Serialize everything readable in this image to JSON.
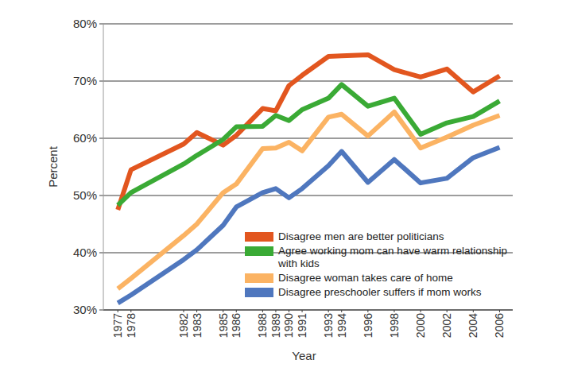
{
  "chart_data": {
    "type": "line",
    "x_label": "Year",
    "y_label": "Percent",
    "x": [
      1977,
      1978,
      1982,
      1983,
      1985,
      1986,
      1988,
      1989,
      1990,
      1991,
      1993,
      1994,
      1996,
      1998,
      2000,
      2002,
      2004,
      2006
    ],
    "xlim": [
      1975.9,
      2007
    ],
    "xticks": [
      1977,
      1978,
      1982,
      1983,
      1985,
      1986,
      1988,
      1989,
      1990,
      1991,
      1993,
      1994,
      1996,
      1998,
      2000,
      2002,
      2004,
      2006
    ],
    "ylim": [
      30,
      80
    ],
    "yticks": [
      {
        "value": 30,
        "label": "30%"
      },
      {
        "value": 40,
        "label": "40%"
      },
      {
        "value": 50,
        "label": "50%"
      },
      {
        "value": 60,
        "label": "60%"
      },
      {
        "value": 70,
        "label": "70%"
      },
      {
        "value": 80,
        "label": "80%"
      }
    ],
    "grid": true,
    "legend": "bottom-right",
    "series": [
      {
        "name": "Disagree men are better politicians",
        "color": "#e2561f",
        "values": [
          47.5,
          54.5,
          59,
          61,
          58.8,
          60.5,
          65.2,
          64.8,
          69.2,
          71,
          74.3,
          74.4,
          74.6,
          72,
          70.7,
          72.1,
          68.1,
          70.9
        ]
      },
      {
        "name": "Agree working mom can have warm relationship with kids",
        "color": "#3aaa35",
        "values": [
          48.3,
          50.5,
          55.5,
          57,
          59.8,
          62,
          62.1,
          64,
          63.1,
          65,
          67,
          69.4,
          65.6,
          67,
          60.7,
          62.7,
          63.8,
          66.5
        ]
      },
      {
        "name": "Disagree woman takes care of home",
        "color": "#fbb363",
        "values": [
          33.7,
          35.5,
          43,
          45,
          50.5,
          52,
          58.2,
          58.3,
          59.3,
          57.8,
          63.7,
          64.2,
          60.4,
          64.6,
          58.3,
          60.2,
          62.3,
          64
        ]
      },
      {
        "name": "Disagree preschooler suffers if mom works",
        "color": "#4f77be",
        "values": [
          31.2,
          32.6,
          38.8,
          40.5,
          44.8,
          48,
          50.5,
          51.2,
          49.6,
          51.2,
          55.2,
          57.7,
          52.3,
          56.3,
          52.2,
          53,
          56.6,
          58.4
        ]
      }
    ]
  }
}
